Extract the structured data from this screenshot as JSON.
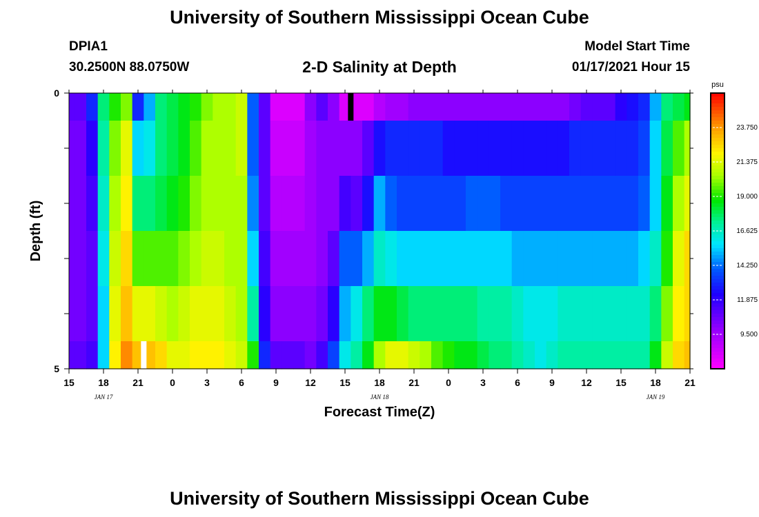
{
  "header": {
    "title": "University of Southern Mississippi Ocean Cube",
    "station_id": "DPIA1",
    "coordinates": "30.2500N 88.0750W",
    "subtitle": "2-D Salinity at Depth",
    "model_start_label": "Model Start Time",
    "model_start_value": "01/17/2021 Hour 15"
  },
  "footer": {
    "title": "University of Southern Mississippi Ocean Cube"
  },
  "chart_data": {
    "type": "heatmap",
    "title": "2-D Salinity at Depth",
    "xlabel": "Forecast Time(Z)",
    "ylabel": "Depth (ft)",
    "y_tick_labels": [
      "0",
      "5"
    ],
    "ylim": [
      0,
      5
    ],
    "x_tick_labels": [
      "15",
      "18",
      "21",
      "0",
      "3",
      "6",
      "9",
      "12",
      "15",
      "18",
      "21",
      "0",
      "3",
      "6",
      "9",
      "12",
      "15",
      "18",
      "21"
    ],
    "date_labels": [
      "JAN 17",
      "JAN 18",
      "JAN 19"
    ],
    "date_label_positions_hours": [
      3,
      27,
      51
    ],
    "time_range_hours": [
      0,
      54
    ],
    "colorbar": {
      "unit": "psu",
      "min": 7.125,
      "max": 26.125,
      "tick_labels": [
        "9.500",
        "11.875",
        "14.250",
        "16.625",
        "19.000",
        "21.375",
        "23.750"
      ],
      "tick_values": [
        9.5,
        11.875,
        14.25,
        16.625,
        19.0,
        21.375,
        23.75
      ]
    },
    "depth_rows": 5,
    "row_heights": [
      0.5,
      1,
      1,
      1,
      1,
      0.5
    ],
    "times_hours": [
      0,
      1,
      2,
      3,
      4,
      5,
      6,
      7,
      8,
      9,
      10,
      11,
      12,
      13,
      14,
      15,
      16,
      17,
      18,
      19,
      20,
      21,
      22,
      23,
      24,
      25,
      26,
      27,
      28,
      29,
      30,
      31,
      32,
      33,
      34,
      35,
      36,
      37,
      38,
      39,
      40,
      41,
      42,
      43,
      44,
      45,
      46,
      47,
      48,
      49,
      50,
      51,
      52,
      53,
      54
    ],
    "values": [
      [
        11.0,
        11.0,
        13.0,
        17.5,
        19.0,
        20.0,
        13.0,
        15.0,
        17.5,
        18.0,
        18.5,
        19.0,
        20.0,
        20.5,
        20.5,
        21.0,
        14.0,
        11.0,
        8.0,
        8.0,
        8.0,
        10.0,
        11.0,
        10.0,
        8.0,
        8.0,
        8.0,
        9.0,
        9.5,
        9.5,
        10.0,
        10.0,
        10.0,
        10.0,
        10.0,
        10.0,
        10.0,
        10.0,
        10.0,
        10.0,
        10.0,
        10.0,
        10.0,
        10.0,
        10.5,
        11.0,
        11.0,
        11.0,
        12.0,
        12.5,
        13.0,
        15.0,
        17.5,
        18.0,
        18.5
      ],
      [
        10.5,
        10.5,
        12.0,
        17.0,
        20.0,
        21.5,
        15.5,
        16.0,
        17.5,
        18.0,
        18.5,
        19.5,
        20.5,
        20.5,
        20.5,
        21.0,
        14.0,
        11.0,
        8.5,
        8.5,
        8.5,
        9.5,
        10.0,
        10.0,
        10.0,
        10.0,
        11.0,
        12.5,
        13.0,
        13.0,
        13.0,
        13.0,
        13.0,
        12.5,
        12.5,
        12.5,
        12.5,
        12.5,
        12.5,
        12.5,
        12.5,
        12.5,
        12.5,
        12.5,
        13.0,
        13.0,
        13.0,
        13.0,
        13.0,
        13.0,
        13.5,
        15.5,
        18.0,
        19.5,
        20.5
      ],
      [
        10.5,
        10.5,
        11.5,
        16.5,
        20.5,
        22.0,
        17.5,
        17.5,
        18.0,
        18.5,
        19.0,
        20.0,
        20.5,
        20.5,
        20.5,
        20.5,
        14.5,
        11.0,
        9.0,
        9.0,
        9.0,
        9.5,
        10.0,
        10.0,
        11.5,
        11.0,
        12.5,
        15.0,
        14.0,
        13.5,
        13.5,
        13.5,
        13.5,
        13.5,
        13.5,
        14.0,
        14.0,
        14.0,
        13.5,
        13.5,
        13.5,
        13.5,
        13.5,
        13.5,
        13.5,
        13.5,
        13.5,
        13.5,
        13.5,
        13.5,
        14.0,
        15.5,
        18.5,
        20.5,
        21.5
      ],
      [
        10.5,
        10.5,
        11.0,
        16.0,
        21.0,
        22.5,
        19.5,
        19.5,
        19.5,
        19.5,
        20.0,
        20.5,
        21.0,
        21.0,
        20.5,
        20.5,
        15.5,
        11.5,
        9.5,
        9.5,
        9.5,
        9.5,
        10.0,
        11.0,
        14.0,
        14.0,
        15.0,
        16.5,
        16.0,
        15.5,
        15.5,
        15.5,
        15.5,
        15.5,
        15.5,
        15.5,
        15.5,
        15.5,
        15.5,
        15.0,
        15.0,
        15.0,
        15.0,
        15.0,
        15.0,
        15.0,
        15.0,
        15.0,
        15.0,
        15.0,
        15.5,
        16.5,
        19.0,
        21.5,
        22.5
      ],
      [
        10.5,
        10.5,
        11.0,
        15.5,
        21.5,
        23.0,
        21.5,
        21.5,
        21.0,
        20.5,
        21.0,
        21.5,
        21.5,
        21.5,
        21.0,
        20.5,
        17.0,
        12.0,
        10.0,
        10.0,
        10.0,
        10.0,
        10.5,
        12.0,
        15.0,
        16.0,
        17.5,
        18.5,
        18.5,
        18.0,
        17.5,
        17.5,
        17.5,
        17.5,
        17.5,
        17.5,
        17.0,
        17.0,
        17.0,
        16.5,
        16.0,
        16.0,
        16.0,
        16.5,
        16.5,
        16.5,
        16.5,
        16.5,
        16.5,
        16.5,
        16.5,
        17.5,
        20.0,
        22.0,
        22.5
      ],
      [
        11.0,
        11.0,
        11.5,
        15.5,
        22.0,
        24.0,
        23.0,
        23.0,
        22.5,
        21.5,
        21.5,
        22.0,
        22.0,
        22.0,
        21.5,
        21.0,
        19.0,
        13.0,
        11.0,
        11.0,
        11.0,
        10.5,
        11.5,
        13.5,
        16.0,
        17.0,
        18.5,
        20.5,
        21.5,
        21.5,
        21.0,
        20.5,
        19.5,
        19.0,
        18.5,
        18.5,
        18.0,
        17.5,
        17.5,
        17.0,
        16.5,
        16.0,
        16.5,
        17.0,
        17.0,
        17.0,
        17.0,
        17.0,
        17.0,
        17.0,
        17.0,
        18.5,
        21.0,
        22.5,
        23.0
      ]
    ],
    "markers": [
      {
        "color": "#000000",
        "time_hour": 24.5,
        "depth_row": 0
      },
      {
        "color": "#ffffff",
        "time_hour": 6.5,
        "depth_row": 5
      }
    ]
  }
}
